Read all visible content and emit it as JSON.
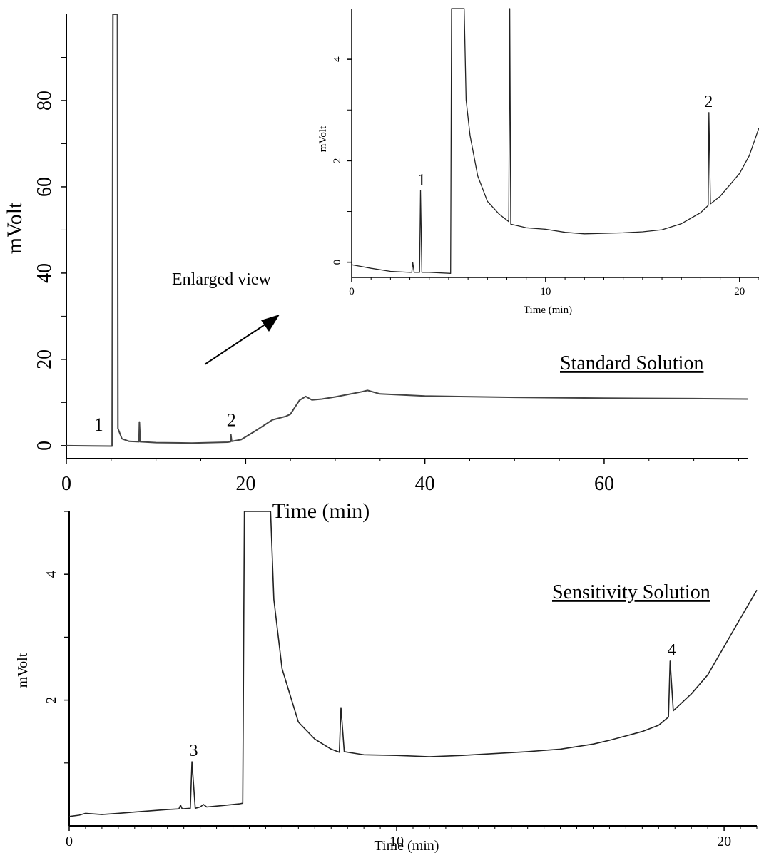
{
  "chart_data": [
    {
      "id": "standard",
      "type": "line",
      "title": "Standard Solution",
      "xlabel": "Time (min)",
      "ylabel": "mVolt",
      "xlim": [
        0,
        76
      ],
      "ylim": [
        -3,
        100
      ],
      "xticks": [
        0,
        20,
        40,
        60
      ],
      "yticks": [
        0,
        20,
        40,
        60,
        80
      ],
      "grid": false,
      "annotation": "Enlarged view",
      "peak_labels": [
        {
          "label": "1",
          "x": 3.6,
          "y": 1.5
        },
        {
          "label": "2",
          "x": 18.4,
          "y": 2.5
        }
      ],
      "series": [
        {
          "color": "#444444",
          "points": [
            [
              0,
              0
            ],
            [
              5.1,
              -0.1
            ],
            [
              5.2,
              100
            ],
            [
              5.7,
              100
            ],
            [
              5.75,
              4
            ],
            [
              6.2,
              1.6
            ],
            [
              7,
              1
            ],
            [
              8.1,
              0.9
            ],
            [
              8.15,
              5.5
            ],
            [
              8.25,
              0.9
            ],
            [
              10,
              0.7
            ],
            [
              14,
              0.6
            ],
            [
              18,
              0.8
            ],
            [
              18.3,
              0.9
            ],
            [
              18.35,
              2.6
            ],
            [
              18.45,
              1
            ],
            [
              19.5,
              1.4
            ],
            [
              21,
              3.3
            ],
            [
              23,
              6
            ],
            [
              24.5,
              6.8
            ],
            [
              25,
              7.3
            ],
            [
              26,
              10.5
            ],
            [
              26.7,
              11.4
            ],
            [
              27.4,
              10.6
            ],
            [
              28.5,
              10.8
            ],
            [
              30,
              11.3
            ],
            [
              33,
              12.5
            ],
            [
              33.6,
              12.8
            ],
            [
              35,
              12
            ],
            [
              40,
              11.5
            ],
            [
              50,
              11.2
            ],
            [
              60,
              11
            ],
            [
              70,
              10.9
            ],
            [
              76,
              10.8
            ]
          ]
        }
      ]
    },
    {
      "id": "inset",
      "type": "line",
      "xlabel": "Time (min)",
      "ylabel": "mVolt",
      "xlim": [
        0,
        21
      ],
      "ylim": [
        -0.3,
        5
      ],
      "xticks": [
        0,
        10,
        20
      ],
      "yticks": [
        0,
        2,
        4
      ],
      "grid": false,
      "peak_labels": [
        {
          "label": "1",
          "x": 3.6,
          "y": 1.4
        },
        {
          "label": "2",
          "x": 18.4,
          "y": 2.95
        }
      ],
      "series": [
        {
          "color": "#222222",
          "points": [
            [
              0,
              -0.05
            ],
            [
              1,
              -0.12
            ],
            [
              2,
              -0.18
            ],
            [
              3,
              -0.2
            ],
            [
              3.1,
              -0.2
            ],
            [
              3.15,
              0
            ],
            [
              3.22,
              -0.2
            ],
            [
              3.5,
              -0.2
            ],
            [
              3.55,
              1.42
            ],
            [
              3.62,
              -0.2
            ],
            [
              4,
              -0.2
            ],
            [
              5.1,
              -0.22
            ],
            [
              5.15,
              5
            ],
            [
              5.8,
              5
            ],
            [
              5.9,
              3.2
            ],
            [
              6.1,
              2.5
            ],
            [
              6.5,
              1.7
            ],
            [
              7,
              1.2
            ],
            [
              7.6,
              0.95
            ],
            [
              8.1,
              0.8
            ],
            [
              8.15,
              5
            ],
            [
              8.2,
              0.75
            ],
            [
              9,
              0.68
            ],
            [
              10,
              0.65
            ],
            [
              11,
              0.59
            ],
            [
              12,
              0.56
            ],
            [
              14,
              0.58
            ],
            [
              15,
              0.6
            ],
            [
              16,
              0.64
            ],
            [
              17,
              0.76
            ],
            [
              18,
              0.98
            ],
            [
              18.38,
              1.12
            ],
            [
              18.42,
              2.95
            ],
            [
              18.5,
              1.15
            ],
            [
              19,
              1.3
            ],
            [
              20,
              1.75
            ],
            [
              20.5,
              2.1
            ],
            [
              21,
              2.65
            ]
          ]
        }
      ]
    },
    {
      "id": "sensitivity",
      "type": "line",
      "title": "Sensitivity Solution",
      "xlabel": "Time (min)",
      "ylabel": "mVolt",
      "xlim": [
        0,
        21
      ],
      "ylim": [
        0,
        5
      ],
      "xticks": [
        0,
        10,
        20
      ],
      "yticks": [
        2,
        4
      ],
      "grid": false,
      "peak_labels": [
        {
          "label": "3",
          "x": 3.8,
          "y": 1.02
        },
        {
          "label": "4",
          "x": 18.4,
          "y": 2.62
        }
      ],
      "series": [
        {
          "color": "#222222",
          "points": [
            [
              0,
              0.15
            ],
            [
              0.3,
              0.17
            ],
            [
              0.5,
              0.2
            ],
            [
              1,
              0.18
            ],
            [
              1.5,
              0.2
            ],
            [
              2,
              0.22
            ],
            [
              2.5,
              0.24
            ],
            [
              3,
              0.26
            ],
            [
              3.35,
              0.27
            ],
            [
              3.4,
              0.33
            ],
            [
              3.45,
              0.27
            ],
            [
              3.7,
              0.28
            ],
            [
              3.75,
              1.02
            ],
            [
              3.85,
              0.28
            ],
            [
              4,
              0.3
            ],
            [
              4.1,
              0.34
            ],
            [
              4.2,
              0.3
            ],
            [
              4.6,
              0.32
            ],
            [
              5.2,
              0.35
            ],
            [
              5.3,
              0.36
            ],
            [
              5.35,
              5
            ],
            [
              6.15,
              5
            ],
            [
              6.25,
              3.6
            ],
            [
              6.5,
              2.5
            ],
            [
              7,
              1.65
            ],
            [
              7.5,
              1.38
            ],
            [
              8,
              1.22
            ],
            [
              8.25,
              1.17
            ],
            [
              8.3,
              1.88
            ],
            [
              8.4,
              1.18
            ],
            [
              9,
              1.13
            ],
            [
              10,
              1.12
            ],
            [
              11,
              1.1
            ],
            [
              12,
              1.12
            ],
            [
              13,
              1.15
            ],
            [
              14,
              1.18
            ],
            [
              15,
              1.22
            ],
            [
              16,
              1.3
            ],
            [
              16.5,
              1.36
            ],
            [
              17,
              1.43
            ],
            [
              17.5,
              1.5
            ],
            [
              18,
              1.6
            ],
            [
              18.3,
              1.73
            ],
            [
              18.35,
              2.62
            ],
            [
              18.45,
              1.83
            ],
            [
              19,
              2.1
            ],
            [
              19.5,
              2.4
            ],
            [
              20,
              2.85
            ],
            [
              20.5,
              3.3
            ],
            [
              21,
              3.75
            ]
          ]
        }
      ]
    }
  ]
}
